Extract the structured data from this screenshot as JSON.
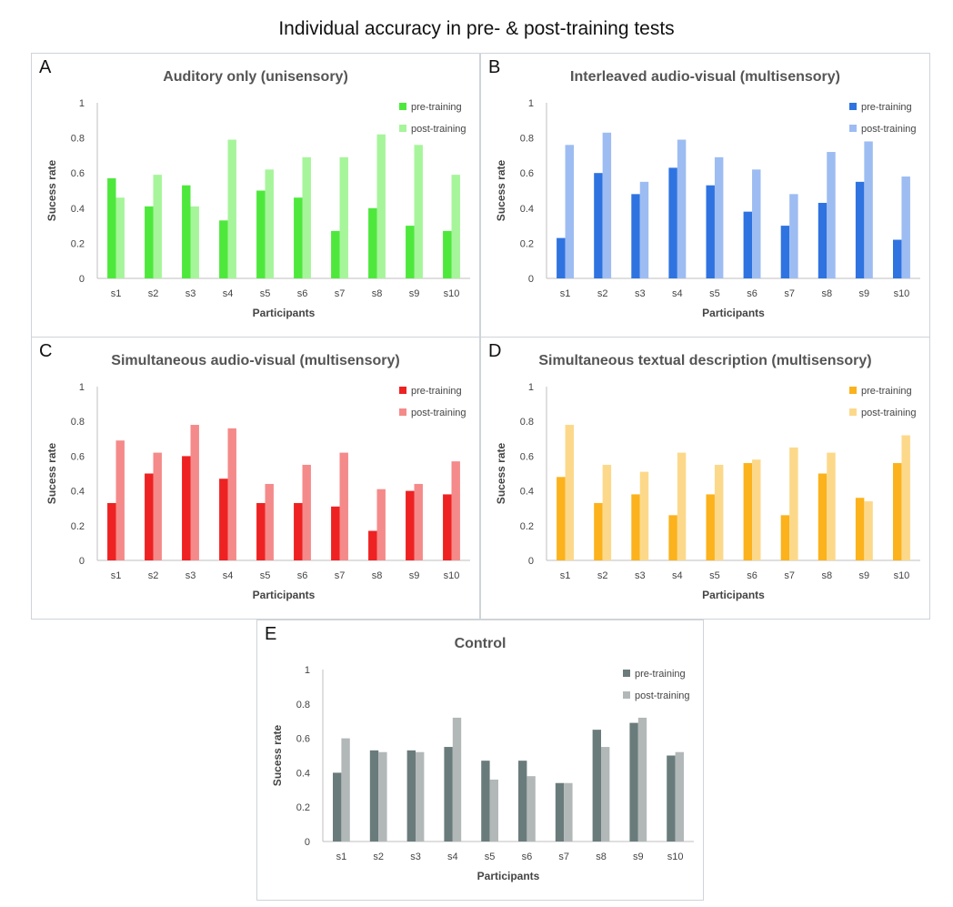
{
  "figure": {
    "title": "Individual accuracy in pre- & post-training tests"
  },
  "chart_data": [
    {
      "type": "bar",
      "panel_label": "A",
      "title": "Auditory only (unisensory)",
      "xlabel": "Participants",
      "ylabel": "Sucess rate",
      "ylim": [
        0,
        1
      ],
      "yticks": [
        "0",
        "0.2",
        "0.4",
        "0.6",
        "0.8",
        "1"
      ],
      "legend_position": "top-right",
      "categories": [
        "s1",
        "s2",
        "s3",
        "s4",
        "s5",
        "s6",
        "s7",
        "s8",
        "s9",
        "s10"
      ],
      "series": [
        {
          "name": "pre-training",
          "color": "#4ee83d",
          "values": [
            0.57,
            0.41,
            0.53,
            0.33,
            0.5,
            0.46,
            0.27,
            0.4,
            0.3,
            0.27
          ]
        },
        {
          "name": "post-training",
          "color": "#a6f59a",
          "values": [
            0.46,
            0.59,
            0.41,
            0.79,
            0.62,
            0.69,
            0.69,
            0.82,
            0.76,
            0.59
          ]
        }
      ]
    },
    {
      "type": "bar",
      "panel_label": "B",
      "title": "Interleaved audio-visual (multisensory)",
      "xlabel": "Participants",
      "ylabel": "Sucess rate",
      "ylim": [
        0,
        1
      ],
      "yticks": [
        "0",
        "0.2",
        "0.4",
        "0.6",
        "0.8",
        "1"
      ],
      "legend_position": "top-right",
      "categories": [
        "s1",
        "s2",
        "s3",
        "s4",
        "s5",
        "s6",
        "s7",
        "s8",
        "s9",
        "s10"
      ],
      "series": [
        {
          "name": "pre-training",
          "color": "#2f73e0",
          "values": [
            0.23,
            0.6,
            0.48,
            0.63,
            0.53,
            0.38,
            0.3,
            0.43,
            0.55,
            0.22
          ]
        },
        {
          "name": "post-training",
          "color": "#9dbcf2",
          "values": [
            0.76,
            0.83,
            0.55,
            0.79,
            0.69,
            0.62,
            0.48,
            0.72,
            0.78,
            0.58
          ]
        }
      ]
    },
    {
      "type": "bar",
      "panel_label": "C",
      "title": "Simultaneous audio-visual (multisensory)",
      "xlabel": "Participants",
      "ylabel": "Sucess rate",
      "ylim": [
        0,
        1
      ],
      "yticks": [
        "0",
        "0.2",
        "0.4",
        "0.6",
        "0.8",
        "1"
      ],
      "legend_position": "top-right",
      "categories": [
        "s1",
        "s2",
        "s3",
        "s4",
        "s5",
        "s6",
        "s7",
        "s8",
        "s9",
        "s10"
      ],
      "series": [
        {
          "name": "pre-training",
          "color": "#ee2222",
          "values": [
            0.33,
            0.5,
            0.6,
            0.47,
            0.33,
            0.33,
            0.31,
            0.17,
            0.4,
            0.38
          ]
        },
        {
          "name": "post-training",
          "color": "#f58a8a",
          "values": [
            0.69,
            0.62,
            0.78,
            0.76,
            0.44,
            0.55,
            0.62,
            0.41,
            0.44,
            0.57
          ]
        }
      ]
    },
    {
      "type": "bar",
      "panel_label": "D",
      "title": "Simultaneous textual description (multisensory)",
      "xlabel": "Participants",
      "ylabel": "Sucess rate",
      "ylim": [
        0,
        1
      ],
      "yticks": [
        "0",
        "0.2",
        "0.4",
        "0.6",
        "0.8",
        "1"
      ],
      "legend_position": "top-right",
      "categories": [
        "s1",
        "s2",
        "s3",
        "s4",
        "s5",
        "s6",
        "s7",
        "s8",
        "s9",
        "s10"
      ],
      "series": [
        {
          "name": "pre-training",
          "color": "#fbb21c",
          "values": [
            0.48,
            0.33,
            0.38,
            0.26,
            0.38,
            0.56,
            0.26,
            0.5,
            0.36,
            0.56
          ]
        },
        {
          "name": "post-training",
          "color": "#fcd98a",
          "values": [
            0.78,
            0.55,
            0.51,
            0.62,
            0.55,
            0.58,
            0.65,
            0.62,
            0.34,
            0.72
          ]
        }
      ]
    },
    {
      "type": "bar",
      "panel_label": "E",
      "title": "Control",
      "xlabel": "Participants",
      "ylabel": "Sucess rate",
      "ylim": [
        0,
        1
      ],
      "yticks": [
        "0",
        "0.2",
        "0.4",
        "0.6",
        "0.8",
        "1"
      ],
      "legend_position": "top-right",
      "categories": [
        "s1",
        "s2",
        "s3",
        "s4",
        "s5",
        "s6",
        "s7",
        "s8",
        "s9",
        "s10"
      ],
      "series": [
        {
          "name": "pre-training",
          "color": "#6a7b7b",
          "values": [
            0.4,
            0.53,
            0.53,
            0.55,
            0.47,
            0.47,
            0.34,
            0.65,
            0.69,
            0.5
          ]
        },
        {
          "name": "post-training",
          "color": "#b2b8b8",
          "values": [
            0.6,
            0.52,
            0.52,
            0.72,
            0.36,
            0.38,
            0.34,
            0.55,
            0.72,
            0.52
          ]
        }
      ]
    }
  ]
}
